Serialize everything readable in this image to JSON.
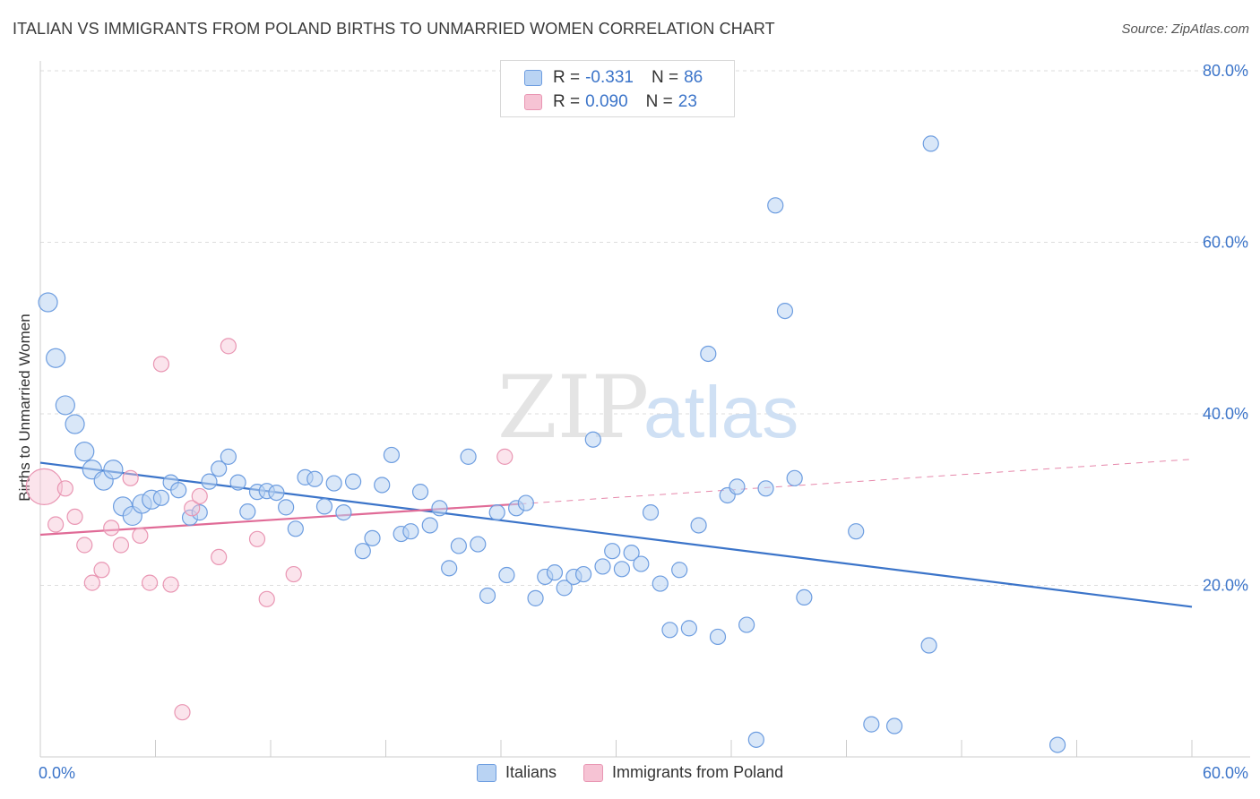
{
  "title": "ITALIAN VS IMMIGRANTS FROM POLAND BIRTHS TO UNMARRIED WOMEN CORRELATION CHART",
  "source": "Source: ZipAtlas.com",
  "watermark": {
    "zip": "ZIP",
    "atlas": "atlas"
  },
  "colors": {
    "blue": "#3b74c9",
    "blue_fill": "#b9d3f3",
    "pink": "#e06b97",
    "pink_fill": "#f6c3d4",
    "grid": "#dddddd",
    "axis": "#cccccc"
  },
  "legend_top": [
    {
      "r_label": "R =",
      "r_value": "-0.331",
      "n_label": "N =",
      "n_value": "86"
    },
    {
      "r_label": "R =",
      "r_value": "0.090",
      "n_label": "N =",
      "n_value": "23"
    }
  ],
  "legend_bottom": [
    "Italians",
    "Immigrants from Poland"
  ],
  "chart_data": {
    "type": "scatter",
    "title": "ITALIAN VS IMMIGRANTS FROM POLAND BIRTHS TO UNMARRIED WOMEN CORRELATION CHART",
    "xlabel": "",
    "ylabel": "Births to Unmarried Women",
    "xlim": [
      0,
      60
    ],
    "ylim": [
      0,
      80
    ],
    "x_tick_labels": [
      "0.0%",
      "60.0%"
    ],
    "y_tick_labels": [
      "20.0%",
      "40.0%",
      "60.0%",
      "80.0%"
    ],
    "y_ticks": [
      20,
      40,
      60,
      80
    ],
    "grid": true,
    "legend_placement": "top-center",
    "series": [
      {
        "name": "Italians",
        "color": "#3b74c9",
        "trend": [
          [
            0,
            34.3
          ],
          [
            60,
            17.5
          ]
        ],
        "points": [
          [
            0.4,
            53
          ],
          [
            0.8,
            46.5
          ],
          [
            1.3,
            41
          ],
          [
            1.8,
            38.8
          ],
          [
            2.3,
            35.6
          ],
          [
            2.7,
            33.5
          ],
          [
            3.3,
            32.2
          ],
          [
            3.8,
            33.5
          ],
          [
            4.3,
            29.2
          ],
          [
            4.8,
            28.1
          ],
          [
            5.3,
            29.5
          ],
          [
            5.8,
            30
          ],
          [
            6.3,
            30.2
          ],
          [
            6.8,
            32
          ],
          [
            7.2,
            31.1
          ],
          [
            7.8,
            27.9
          ],
          [
            8.3,
            28.5
          ],
          [
            8.8,
            32.1
          ],
          [
            9.3,
            33.6
          ],
          [
            9.8,
            35
          ],
          [
            10.3,
            32
          ],
          [
            10.8,
            28.6
          ],
          [
            11.3,
            30.9
          ],
          [
            11.8,
            31
          ],
          [
            12.3,
            30.8
          ],
          [
            12.8,
            29.1
          ],
          [
            13.3,
            26.6
          ],
          [
            13.8,
            32.6
          ],
          [
            14.3,
            32.4
          ],
          [
            14.8,
            29.2
          ],
          [
            15.3,
            31.9
          ],
          [
            15.8,
            28.5
          ],
          [
            16.3,
            32.1
          ],
          [
            16.8,
            24
          ],
          [
            17.3,
            25.5
          ],
          [
            17.8,
            31.7
          ],
          [
            18.3,
            35.2
          ],
          [
            18.8,
            26
          ],
          [
            19.3,
            26.3
          ],
          [
            19.8,
            30.9
          ],
          [
            20.3,
            27
          ],
          [
            20.8,
            29
          ],
          [
            21.3,
            22
          ],
          [
            21.8,
            24.6
          ],
          [
            22.3,
            35
          ],
          [
            22.8,
            24.8
          ],
          [
            23.3,
            18.8
          ],
          [
            23.8,
            28.5
          ],
          [
            24.3,
            21.2
          ],
          [
            24.8,
            29
          ],
          [
            25.3,
            29.6
          ],
          [
            25.8,
            18.5
          ],
          [
            26.3,
            21
          ],
          [
            26.8,
            21.5
          ],
          [
            27.3,
            19.7
          ],
          [
            27.8,
            21
          ],
          [
            28.3,
            21.3
          ],
          [
            28.8,
            37
          ],
          [
            29.3,
            22.2
          ],
          [
            29.8,
            24
          ],
          [
            30.3,
            21.9
          ],
          [
            30.8,
            23.8
          ],
          [
            31.3,
            22.5
          ],
          [
            31.8,
            28.5
          ],
          [
            32.3,
            20.2
          ],
          [
            32.8,
            14.8
          ],
          [
            33.3,
            21.8
          ],
          [
            33.8,
            15
          ],
          [
            34.3,
            27
          ],
          [
            34.8,
            47
          ],
          [
            35.3,
            14
          ],
          [
            35.8,
            30.5
          ],
          [
            36.3,
            31.5
          ],
          [
            36.8,
            15.4
          ],
          [
            37.3,
            2
          ],
          [
            37.8,
            31.3
          ],
          [
            38.3,
            64.3
          ],
          [
            38.8,
            52
          ],
          [
            39.3,
            32.5
          ],
          [
            39.8,
            18.6
          ],
          [
            42.5,
            26.3
          ],
          [
            43.3,
            3.8
          ],
          [
            44.5,
            3.6
          ],
          [
            46.3,
            13
          ],
          [
            46.4,
            71.5
          ],
          [
            53,
            1.4
          ]
        ]
      },
      {
        "name": "Immigrants from Poland",
        "color": "#e06b97",
        "trend": [
          [
            0,
            25.9
          ],
          [
            25,
            29.5
          ]
        ],
        "trend_extension": [
          [
            25,
            29.5
          ],
          [
            60,
            34.7
          ]
        ],
        "points": [
          [
            0.2,
            31.5
          ],
          [
            0.8,
            27.1
          ],
          [
            1.3,
            31.3
          ],
          [
            1.8,
            28
          ],
          [
            2.3,
            24.7
          ],
          [
            2.7,
            20.3
          ],
          [
            3.2,
            21.8
          ],
          [
            3.7,
            26.7
          ],
          [
            4.2,
            24.7
          ],
          [
            4.7,
            32.5
          ],
          [
            5.2,
            25.8
          ],
          [
            5.7,
            20.3
          ],
          [
            6.3,
            45.8
          ],
          [
            6.8,
            20.1
          ],
          [
            7.4,
            5.2
          ],
          [
            7.9,
            29
          ],
          [
            8.3,
            30.4
          ],
          [
            9.3,
            23.3
          ],
          [
            9.8,
            47.9
          ],
          [
            11.3,
            25.4
          ],
          [
            11.8,
            18.4
          ],
          [
            13.2,
            21.3
          ],
          [
            24.2,
            35
          ]
        ]
      }
    ]
  }
}
